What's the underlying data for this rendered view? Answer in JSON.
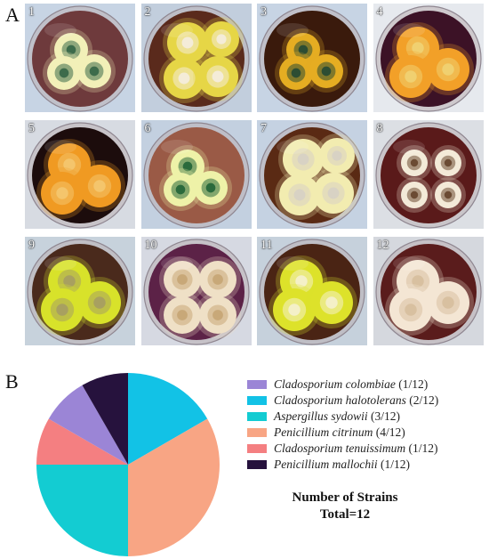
{
  "panels": {
    "a": "A",
    "b": "B"
  },
  "plates": [
    {
      "label": "1",
      "background": "#c7d4e4",
      "medium": "#6e3a3c",
      "colonies": [
        [
          "#f2f0b8",
          "#3d6b4b"
        ],
        [
          "#f2f0b8",
          "#3d6b4b"
        ],
        [
          "#f2f0b8",
          "#3d6b4b"
        ]
      ],
      "layout": "tri"
    },
    {
      "label": "2",
      "background": "#c2cedd",
      "medium": "#5a2a1c",
      "colonies": [
        [
          "#e6d646",
          "#f4ecd8"
        ],
        [
          "#e6d646",
          "#f4ecd8"
        ],
        [
          "#e6d646",
          "#f4ecd8"
        ],
        [
          "#e6d646",
          "#f4ecd8"
        ]
      ],
      "layout": "spread"
    },
    {
      "label": "3",
      "background": "#c7d4e4",
      "medium": "#3a1a0c",
      "colonies": [
        [
          "#e5ad22",
          "#2d4d33"
        ],
        [
          "#e5ad22",
          "#2d4d33"
        ],
        [
          "#e5ad22",
          "#2d4d33"
        ]
      ],
      "layout": "tri"
    },
    {
      "label": "4",
      "background": "#e6e9ee",
      "medium": "#3c1226",
      "colonies": [
        [
          "#f2a028",
          "#f0d070"
        ],
        [
          "#f2a028",
          "#f0d070"
        ],
        [
          "#f2a028",
          "#f0d070"
        ]
      ],
      "layout": "tri-large"
    },
    {
      "label": "5",
      "background": "#d7dbe2",
      "medium": "#1c0c0c",
      "colonies": [
        [
          "#f09a22",
          "#f4c56c"
        ],
        [
          "#f09a22",
          "#f4c56c"
        ],
        [
          "#f09a22",
          "#f4c56c"
        ]
      ],
      "layout": "tri-large"
    },
    {
      "label": "6",
      "background": "#c3d0e0",
      "medium": "#9a5a46",
      "colonies": [
        [
          "#eef2a8",
          "#2b6a3c"
        ],
        [
          "#eef2a8",
          "#2b6a3c"
        ],
        [
          "#eef2a8",
          "#2b6a3c"
        ]
      ],
      "layout": "tri"
    },
    {
      "label": "7",
      "background": "#c5d2e2",
      "medium": "#5a2a14",
      "colonies": [
        [
          "#f2ecb0",
          "#d8d2c4"
        ],
        [
          "#f2ecb0",
          "#d8d2c4"
        ],
        [
          "#f2ecb0",
          "#d8d2c4"
        ],
        [
          "#f2ecb0",
          "#d8d2c4"
        ]
      ],
      "layout": "spread"
    },
    {
      "label": "8",
      "background": "#dcdfe4",
      "medium": "#5a1a1a",
      "colonies": [
        [
          "#f3ead8",
          "#6b4b33"
        ],
        [
          "#f3ead8",
          "#6b4b33"
        ],
        [
          "#f3ead8",
          "#6b4b33"
        ],
        [
          "#f3ead8",
          "#6b4b33"
        ]
      ],
      "layout": "quad"
    },
    {
      "label": "9",
      "background": "#c7d2dc",
      "medium": "#4a2a1c",
      "colonies": [
        [
          "#d8e22a",
          "#a8a060"
        ],
        [
          "#d8e22a",
          "#a8a060"
        ],
        [
          "#d8e22a",
          "#a8a060"
        ]
      ],
      "layout": "tri-large"
    },
    {
      "label": "10",
      "background": "#d6d9e2",
      "medium": "#5c2247",
      "colonies": [
        [
          "#efe0c6",
          "#c8a878"
        ],
        [
          "#efe0c6",
          "#c8a878"
        ],
        [
          "#efe0c6",
          "#c8a878"
        ],
        [
          "#efe0c6",
          "#c8a878"
        ]
      ],
      "layout": "quad-large"
    },
    {
      "label": "11",
      "background": "#c6d1dc",
      "medium": "#4a2414",
      "colonies": [
        [
          "#dde22a",
          "#f4f0c8"
        ],
        [
          "#dde22a",
          "#f4f0c8"
        ],
        [
          "#dde22a",
          "#f4f0c8"
        ]
      ],
      "layout": "tri-large"
    },
    {
      "label": "12",
      "background": "#d5d8de",
      "medium": "#5a1c1c",
      "colonies": [
        [
          "#f4e6d4",
          "#d8c0a0"
        ],
        [
          "#f4e6d4",
          "#d8c0a0"
        ],
        [
          "#f4e6d4",
          "#d8c0a0"
        ]
      ],
      "layout": "tri-large"
    }
  ],
  "chart_data": {
    "type": "pie",
    "slices": [
      {
        "name": "Cladosporium colombiae",
        "count_label": "(1/12)",
        "value": 1,
        "color": "#9b85d6"
      },
      {
        "name": "Cladosporium halotolerans",
        "count_label": "(2/12)",
        "value": 2,
        "color": "#12c2e6"
      },
      {
        "name": "Aspergillus sydowii",
        "count_label": "(3/12)",
        "value": 3,
        "color": "#13ccd2"
      },
      {
        "name": "Penicillium citrinum",
        "count_label": "(4/12)",
        "value": 4,
        "color": "#f8a584"
      },
      {
        "name": "Cladosporium tenuissimum",
        "count_label": "(1/12)",
        "value": 1,
        "color": "#f47f81"
      },
      {
        "name": "Penicillium mallochii",
        "count_label": "(1/12)",
        "value": 1,
        "color": "#26123d"
      }
    ],
    "pie_order": [
      "Cladosporium halotolerans",
      "Penicillium citrinum",
      "Aspergillus sydowii",
      "Cladosporium tenuissimum",
      "Cladosporium colombiae",
      "Penicillium mallochii"
    ],
    "start": "12 o'clock",
    "direction": "clockwise",
    "legend_placement": "right",
    "title": "Number of Strains",
    "subtitle": "Total=12"
  }
}
